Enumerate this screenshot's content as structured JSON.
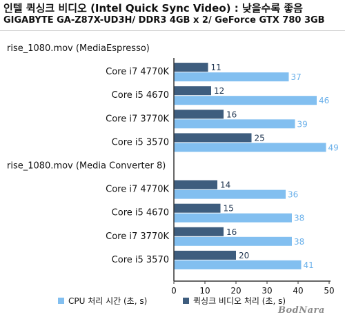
{
  "title": "인텔 퀵싱크 비디오 (Intel Quick Sync Video) : 낮을수록 좋음",
  "subtitle": "GIGABYTE GA-Z87X-UD3H/ DDR3 4GB x 2/ GeForce GTX 780 3GB",
  "watermark": "BodNara",
  "colors": {
    "cpu": "#82bff0",
    "qsv": "#3e5d7e",
    "axis": "#333333",
    "label": "#111111"
  },
  "chart_data": {
    "type": "bar",
    "orientation": "horizontal",
    "rows": [
      {
        "kind": "group",
        "label": "rise_1080.mov (MediaEspresso)"
      },
      {
        "kind": "item",
        "label": "Core i7 4770K",
        "qsv": 11,
        "cpu": 37
      },
      {
        "kind": "item",
        "label": "Core i5 4670",
        "qsv": 12,
        "cpu": 46
      },
      {
        "kind": "item",
        "label": "Core i7 3770K",
        "qsv": 16,
        "cpu": 39
      },
      {
        "kind": "item",
        "label": "Core i5 3570",
        "qsv": 25,
        "cpu": 49
      },
      {
        "kind": "group",
        "label": "rise_1080.mov (Media Converter 8)"
      },
      {
        "kind": "item",
        "label": "Core i7 4770K",
        "qsv": 14,
        "cpu": 36
      },
      {
        "kind": "item",
        "label": "Core i5 4670",
        "qsv": 15,
        "cpu": 38
      },
      {
        "kind": "item",
        "label": "Core i7 3770K",
        "qsv": 16,
        "cpu": 38
      },
      {
        "kind": "item",
        "label": "Core i5 3570",
        "qsv": 20,
        "cpu": 41
      }
    ],
    "series": [
      {
        "key": "cpu",
        "name": "CPU 처리 시간 (초, s)"
      },
      {
        "key": "qsv",
        "name": "퀵싱크 비디오 처리 (초, s)"
      }
    ],
    "xlim": [
      0,
      50
    ],
    "xticks": [
      0,
      10,
      20,
      30,
      40,
      50
    ],
    "legend_position": "bottom"
  }
}
